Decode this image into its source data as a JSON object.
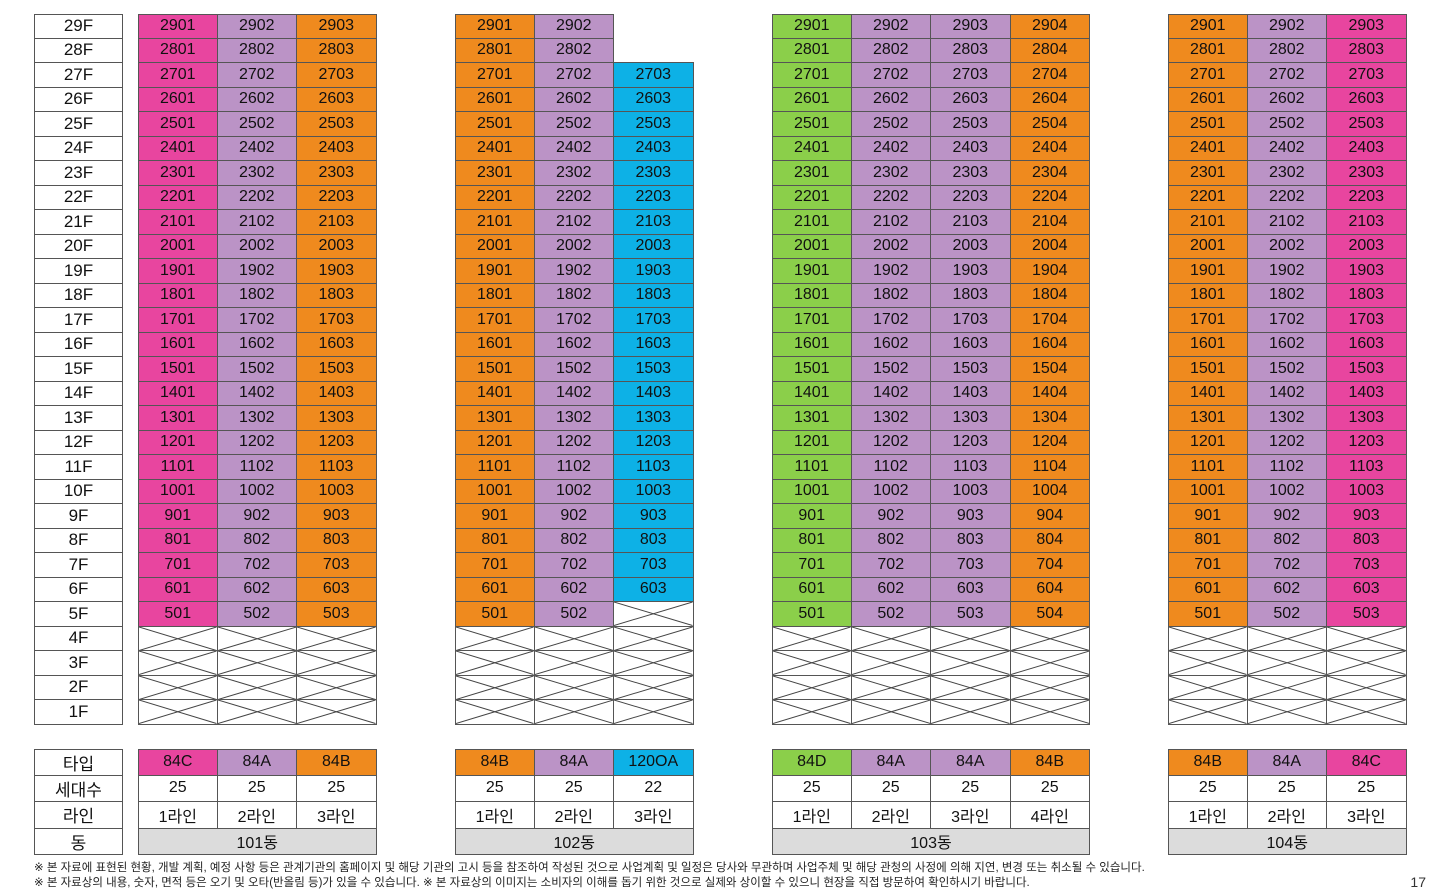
{
  "floors": [
    "29F",
    "28F",
    "27F",
    "26F",
    "25F",
    "24F",
    "23F",
    "22F",
    "21F",
    "20F",
    "19F",
    "18F",
    "17F",
    "16F",
    "15F",
    "14F",
    "13F",
    "12F",
    "11F",
    "10F",
    "9F",
    "8F",
    "7F",
    "6F",
    "5F",
    "4F",
    "3F",
    "2F",
    "1F"
  ],
  "colors": {
    "magenta": "#e8459f",
    "lavender": "#bb93c6",
    "orange": "#ef8a1e",
    "blue": "#0db1e6",
    "green": "#8bcf4a",
    "dong_bg": "#dcdcdc"
  },
  "info_labels": {
    "type": "타입",
    "households": "세대수",
    "line": "라인",
    "dong": "동"
  },
  "buildings": [
    {
      "id": "101",
      "dong_label": "101동",
      "lines": [
        {
          "type": "84C",
          "households": "25",
          "line_label": "1라인",
          "color": "#e8459f",
          "top_floor": 29,
          "bottom_floor": 5,
          "suffix": "01"
        },
        {
          "type": "84A",
          "households": "25",
          "line_label": "2라인",
          "color": "#bb93c6",
          "top_floor": 29,
          "bottom_floor": 5,
          "suffix": "02"
        },
        {
          "type": "84B",
          "households": "25",
          "line_label": "3라인",
          "color": "#ef8a1e",
          "top_floor": 29,
          "bottom_floor": 5,
          "suffix": "03"
        }
      ]
    },
    {
      "id": "102",
      "dong_label": "102동",
      "lines": [
        {
          "type": "84B",
          "households": "25",
          "line_label": "1라인",
          "color": "#ef8a1e",
          "top_floor": 29,
          "bottom_floor": 5,
          "suffix": "01"
        },
        {
          "type": "84A",
          "households": "25",
          "line_label": "2라인",
          "color": "#bb93c6",
          "top_floor": 29,
          "bottom_floor": 5,
          "suffix": "02"
        },
        {
          "type": "120OA",
          "households": "22",
          "line_label": "3라인",
          "color": "#0db1e6",
          "top_floor": 27,
          "bottom_floor": 6,
          "suffix": "03"
        }
      ]
    },
    {
      "id": "103",
      "dong_label": "103동",
      "lines": [
        {
          "type": "84D",
          "households": "25",
          "line_label": "1라인",
          "color": "#8bcf4a",
          "top_floor": 29,
          "bottom_floor": 5,
          "suffix": "01"
        },
        {
          "type": "84A",
          "households": "25",
          "line_label": "2라인",
          "color": "#bb93c6",
          "top_floor": 29,
          "bottom_floor": 5,
          "suffix": "02"
        },
        {
          "type": "84A",
          "households": "25",
          "line_label": "3라인",
          "color": "#bb93c6",
          "top_floor": 29,
          "bottom_floor": 5,
          "suffix": "03"
        },
        {
          "type": "84B",
          "households": "25",
          "line_label": "4라인",
          "color": "#ef8a1e",
          "top_floor": 29,
          "bottom_floor": 5,
          "suffix": "04"
        }
      ]
    },
    {
      "id": "104",
      "dong_label": "104동",
      "lines": [
        {
          "type": "84B",
          "households": "25",
          "line_label": "1라인",
          "color": "#ef8a1e",
          "top_floor": 29,
          "bottom_floor": 5,
          "suffix": "01"
        },
        {
          "type": "84A",
          "households": "25",
          "line_label": "2라인",
          "color": "#bb93c6",
          "top_floor": 29,
          "bottom_floor": 5,
          "suffix": "02"
        },
        {
          "type": "84C",
          "households": "25",
          "line_label": "3라인",
          "color": "#e8459f",
          "top_floor": 29,
          "bottom_floor": 5,
          "suffix": "03"
        }
      ]
    }
  ],
  "notes": [
    "※ 본 자료에 표현된 현황, 개발 계획, 예정 사항 등은 관계기관의 홈페이지 및 해당 기관의 고시 등을 참조하여 작성된 것으로 사업계획 및 일정은 당사와 무관하며 사업주체 및 해당 관청의 사정에 의해 지연, 변경 또는 취소될 수 있습니다.",
    "※ 본 자료상의 내용, 숫자, 면적 등은 오기 및 오타(반올림 등)가 있을 수 있습니다. ※ 본 자료상의 이미지는 소비자의 이해를 돕기 위한 것으로 실제와 상이할 수 있으니 현장을 직접 방문하여 확인하시기 바랍니다."
  ],
  "page_number": "17"
}
